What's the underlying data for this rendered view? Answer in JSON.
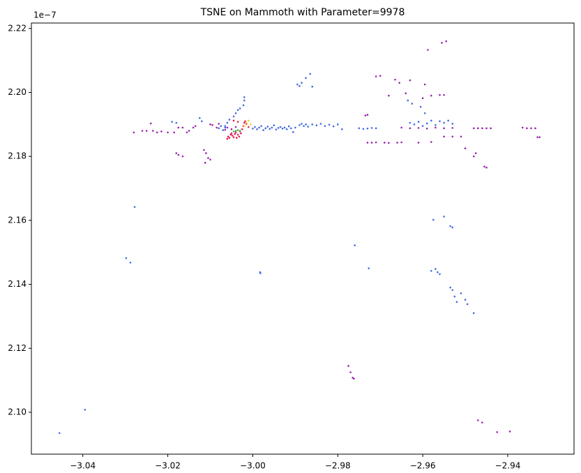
{
  "chart_data": {
    "type": "scatter",
    "title": "TSNE on Mammoth with Parameter=9978",
    "y_offset_label": "1e−7",
    "xlim": [
      -3.0521,
      -2.9244
    ],
    "ylim": [
      2.0869,
      2.2217
    ],
    "xticks": [
      {
        "value": -3.04,
        "label": "−3.04"
      },
      {
        "value": -3.02,
        "label": "−3.02"
      },
      {
        "value": -3.0,
        "label": "−3.00"
      },
      {
        "value": -2.98,
        "label": "−2.98"
      },
      {
        "value": -2.96,
        "label": "−2.96"
      },
      {
        "value": -2.94,
        "label": "−2.94"
      }
    ],
    "yticks": [
      {
        "value": 2.1,
        "label": "2.10"
      },
      {
        "value": 2.12,
        "label": "2.12"
      },
      {
        "value": 2.14,
        "label": "2.14"
      },
      {
        "value": 2.16,
        "label": "2.16"
      },
      {
        "value": 2.18,
        "label": "2.18"
      },
      {
        "value": 2.2,
        "label": "2.20"
      },
      {
        "value": 2.22,
        "label": "2.22"
      }
    ],
    "series": [
      {
        "color": "#4169e1",
        "x": [
          -3.0455,
          -3.0395,
          -3.0278,
          -3.0298,
          -3.0288,
          -2.9983,
          -2.9982,
          -2.976,
          -2.9727,
          -2.9575,
          -2.955,
          -2.9535,
          -2.953,
          -2.958,
          -2.957,
          -2.9565,
          -2.956,
          -2.9535,
          -2.953,
          -2.9525,
          -2.952,
          -2.951,
          -2.95,
          -2.9495,
          -2.948,
          -2.9895,
          -2.9885,
          -2.9875,
          -2.9865,
          -2.986,
          -2.989,
          -3.002,
          -3.002,
          -3.0022,
          -3.003,
          -3.0035,
          -3.004,
          -3.0045,
          -3.0055,
          -3.006,
          -3.0065,
          -3.018,
          -3.019,
          -3.0125,
          -3.012,
          -3.008,
          -3.0075,
          -3.007,
          -3.0065,
          -3.0,
          -2.9995,
          -2.999,
          -2.9985,
          -2.998,
          -2.9975,
          -2.997,
          -2.9965,
          -2.996,
          -2.9955,
          -2.995,
          -2.9945,
          -2.994,
          -2.9935,
          -2.993,
          -2.9925,
          -2.992,
          -2.9915,
          -2.991,
          -2.9905,
          -2.99,
          -2.989,
          -2.9885,
          -2.988,
          -2.9875,
          -2.987,
          -2.986,
          -2.985,
          -2.984,
          -2.983,
          -2.982,
          -2.981,
          -2.98,
          -2.979,
          -2.975,
          -2.974,
          -2.973,
          -2.972,
          -2.971,
          -2.963,
          -2.962,
          -2.961,
          -2.96,
          -2.959,
          -2.958,
          -2.957,
          -2.956,
          -2.955,
          -2.954,
          -2.953,
          -2.9605,
          -2.9625,
          -2.9635,
          -2.9595
        ],
        "y": [
          2.0935,
          2.1008,
          2.1642,
          2.1482,
          2.1468,
          2.1438,
          2.1435,
          2.1522,
          2.145,
          2.1602,
          2.1612,
          2.1582,
          2.1578,
          2.1442,
          2.1448,
          2.1438,
          2.1432,
          2.139,
          2.1382,
          2.1362,
          2.1345,
          2.1372,
          2.1352,
          2.1338,
          2.131,
          2.2025,
          2.203,
          2.2045,
          2.2058,
          2.2018,
          2.202,
          2.1985,
          2.1975,
          2.196,
          2.195,
          2.1945,
          2.1935,
          2.1925,
          2.1915,
          2.1905,
          2.1895,
          2.1905,
          2.1908,
          2.192,
          2.191,
          2.1888,
          2.1895,
          2.1882,
          2.189,
          2.1887,
          2.1892,
          2.1885,
          2.189,
          2.1895,
          2.1882,
          2.1888,
          2.1893,
          2.1886,
          2.189,
          2.1897,
          2.1884,
          2.1889,
          2.1892,
          2.1887,
          2.189,
          2.1885,
          2.1894,
          2.1888,
          2.1876,
          2.189,
          2.1898,
          2.1902,
          2.1895,
          2.19,
          2.1893,
          2.19,
          2.1897,
          2.1902,
          2.1895,
          2.1899,
          2.1894,
          2.19,
          2.1885,
          2.1888,
          2.1886,
          2.1887,
          2.1889,
          2.1888,
          2.1905,
          2.19,
          2.1908,
          2.1895,
          2.1903,
          2.1912,
          2.1898,
          2.191,
          2.1905,
          2.1912,
          2.1902,
          2.1955,
          2.1965,
          2.1975,
          2.1935
        ]
      },
      {
        "color": "#9b1fb0",
        "x": [
          -2.9365,
          -2.9355,
          -2.9345,
          -2.9335,
          -2.933,
          -2.9325,
          -2.948,
          -2.947,
          -2.946,
          -2.945,
          -2.944,
          -2.965,
          -2.963,
          -2.961,
          -2.959,
          -2.957,
          -2.955,
          -2.953,
          -2.9588,
          -2.9555,
          -2.9545,
          -2.971,
          -2.97,
          -2.9665,
          -2.9655,
          -2.963,
          -2.9595,
          -2.964,
          -2.968,
          -2.96,
          -2.958,
          -2.956,
          -2.955,
          -2.973,
          -2.9735,
          -2.973,
          -2.972,
          -2.971,
          -2.969,
          -2.968,
          -2.966,
          -2.965,
          -2.961,
          -2.958,
          -2.955,
          -2.953,
          -2.951,
          -2.9475,
          -2.948,
          -2.9455,
          -2.945,
          -2.95,
          -2.947,
          -2.946,
          -2.9425,
          -2.9395,
          -2.9775,
          -2.977,
          -2.9765,
          -2.9762,
          -3.028,
          -3.026,
          -3.025,
          -3.024,
          -3.0235,
          -3.0225,
          -3.0215,
          -3.02,
          -3.0185,
          -3.0175,
          -3.0165,
          -3.0155,
          -3.018,
          -3.0175,
          -3.0165,
          -3.0115,
          -3.011,
          -3.0105,
          -3.0112,
          -3.01,
          -3.0095,
          -3.0085,
          -3.01,
          -3.008,
          -3.0135,
          -3.014,
          -3.015,
          -3.006,
          -3.005,
          -3.004,
          -3.0065
        ],
        "y": [
          2.189,
          2.1888,
          2.1888,
          2.1888,
          2.186,
          2.186,
          2.1888,
          2.1888,
          2.1888,
          2.1888,
          2.1888,
          2.189,
          2.1888,
          2.1889,
          2.1887,
          2.189,
          2.1888,
          2.1889,
          2.2133,
          2.2155,
          2.216,
          2.205,
          2.2052,
          2.204,
          2.203,
          2.2038,
          2.2025,
          2.1997,
          2.199,
          2.1982,
          2.199,
          2.1992,
          2.1992,
          2.193,
          2.1928,
          2.1843,
          2.1843,
          2.1844,
          2.1843,
          2.1842,
          2.1843,
          2.1844,
          2.1843,
          2.1845,
          2.1862,
          2.1862,
          2.1862,
          2.181,
          2.18,
          2.1768,
          2.1765,
          2.1825,
          2.0975,
          2.0968,
          2.0938,
          2.094,
          2.1145,
          2.1125,
          2.1108,
          2.1105,
          2.1875,
          2.188,
          2.188,
          2.1903,
          2.188,
          2.1875,
          2.1878,
          2.1875,
          2.1875,
          2.189,
          2.189,
          2.1875,
          2.181,
          2.1805,
          2.18,
          2.182,
          2.181,
          2.1795,
          2.178,
          2.179,
          2.1898,
          2.189,
          2.19,
          2.1902,
          2.1895,
          2.189,
          2.188,
          2.189,
          2.1885,
          2.1892,
          2.1883
        ]
      },
      {
        "color": "#e8174f",
        "x": [
          -3.006,
          -3.0058,
          -3.0055,
          -3.0052,
          -3.005,
          -3.0048,
          -3.0045,
          -3.0042,
          -3.004,
          -3.0038,
          -3.0035,
          -3.0032,
          -3.003,
          -3.0028,
          -3.0025,
          -3.0022,
          -3.002,
          -3.0018,
          -3.0015,
          -3.001,
          -3.0035,
          -3.0045
        ],
        "y": [
          2.1855,
          2.1862,
          2.1858,
          2.1868,
          2.1872,
          2.1865,
          2.186,
          2.187,
          2.1875,
          2.1858,
          2.1868,
          2.1862,
          2.1878,
          2.1872,
          2.1885,
          2.1895,
          2.1905,
          2.191,
          2.1902,
          2.1892,
          2.1908,
          2.1912
        ]
      },
      {
        "color": "#f2d12a",
        "x": [
          -3.001,
          -3.0015,
          -3.0005,
          -3.002
        ],
        "y": [
          2.1912,
          2.1905,
          2.19,
          2.1895
        ]
      },
      {
        "color": "#3cb44b",
        "x": [
          -3.004,
          -3.0035,
          -3.0045,
          -3.003
        ],
        "y": [
          2.188,
          2.1882,
          2.1878,
          2.188
        ]
      }
    ]
  }
}
